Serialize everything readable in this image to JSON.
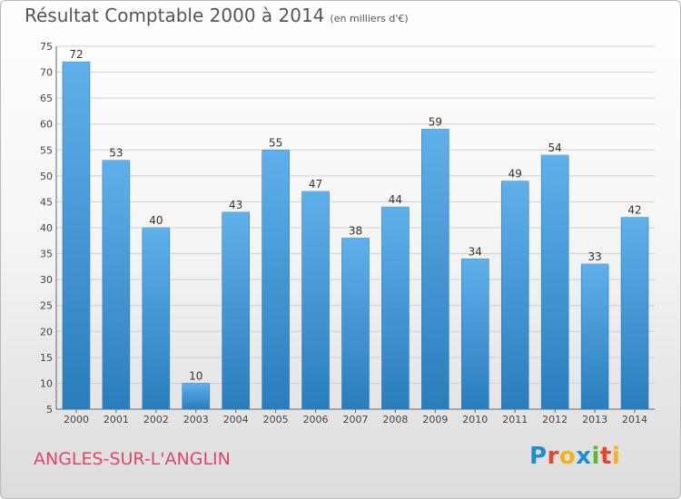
{
  "title": "Résultat Comptable 2000 à 2014",
  "subtitle": "(en milliers d'€)",
  "location": "ANGLES-SUR-L'ANGLIN",
  "logo": {
    "text": "Proxiti",
    "letters": [
      {
        "char": "P",
        "color": "#1d8fd0"
      },
      {
        "char": "r",
        "color": "#e8442e"
      },
      {
        "char": "o",
        "color": "#f5b31b"
      },
      {
        "char": "x",
        "color": "#1d8fd0"
      },
      {
        "char": "i",
        "color": "#5fb82e"
      },
      {
        "char": "t",
        "color": "#e8442e"
      },
      {
        "char": "i",
        "color": "#f5b31b"
      }
    ]
  },
  "colors": {
    "bar": "#3d93d3",
    "bar_light": "#5fb0ea",
    "bar_dark": "#2a7dbd",
    "grid": "#cfcfcf",
    "axis": "#666666"
  },
  "chart_data": {
    "type": "bar",
    "categories": [
      "2000",
      "2001",
      "2002",
      "2003",
      "2004",
      "2005",
      "2006",
      "2007",
      "2008",
      "2009",
      "2010",
      "2011",
      "2012",
      "2013",
      "2014"
    ],
    "values": [
      72,
      53,
      40,
      10,
      43,
      55,
      47,
      38,
      44,
      59,
      34,
      49,
      54,
      33,
      42
    ],
    "title": "Résultat Comptable 2000 à 2014",
    "ylim": [
      5,
      75
    ],
    "yticks": [
      5,
      10,
      15,
      20,
      25,
      30,
      35,
      40,
      45,
      50,
      55,
      60,
      65,
      70,
      75
    ],
    "grid": true,
    "legend": "none"
  }
}
